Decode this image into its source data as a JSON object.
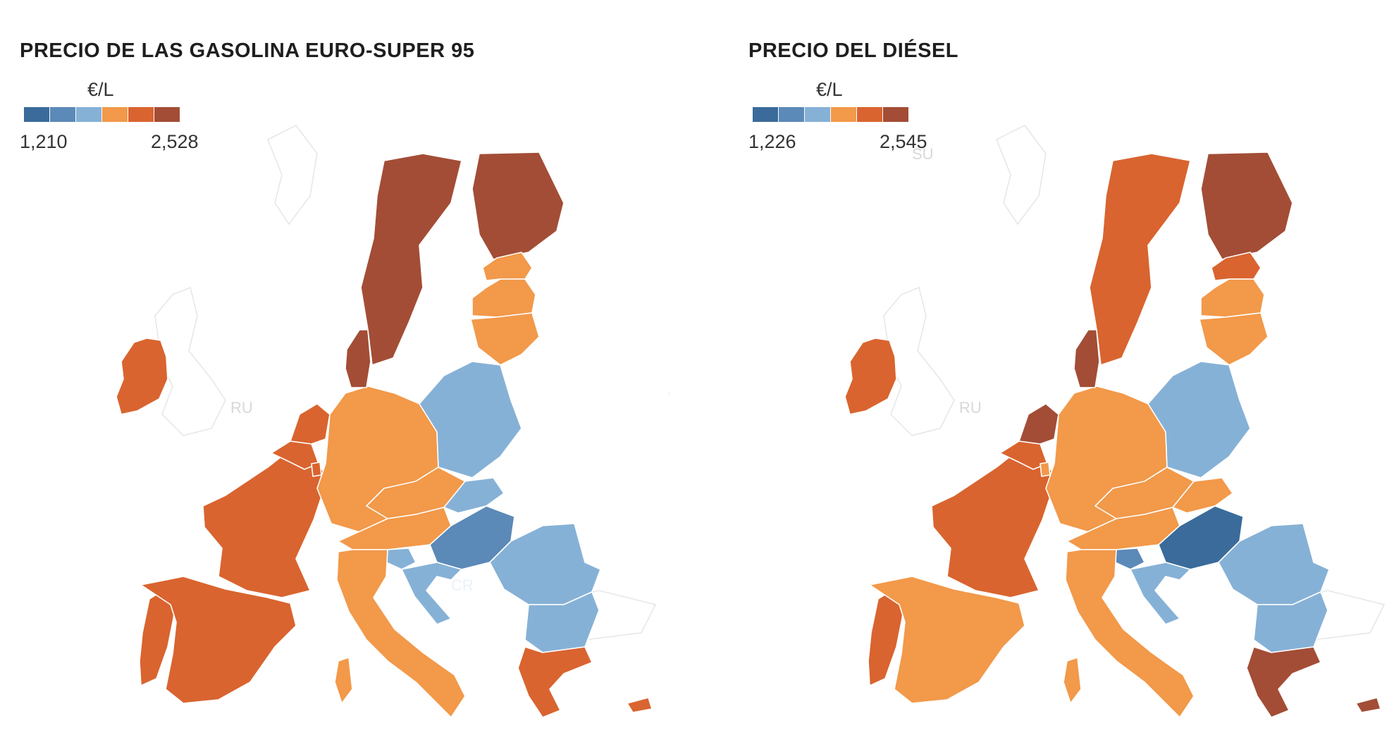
{
  "colors": {
    "scale": [
      "#3a6b9a",
      "#5b89b8",
      "#86b1d6",
      "#f2994a",
      "#d9642f",
      "#a34d36"
    ]
  },
  "panels": [
    {
      "title": "PRECIO DE LAS GASOLINA EURO-SUPER 95",
      "unit": "€/L",
      "min": "1,210",
      "max": "2,528",
      "map_labels": {
        "ru": "RU",
        "hr": "CR",
        "su": ""
      },
      "fills": {
        "ireland": 4,
        "portugal": 4,
        "spain": 4,
        "france": 4,
        "belgium": 4,
        "netherlands": 4,
        "luxembourg": 4,
        "denmark": 5,
        "sweden": 5,
        "finland": 5,
        "estonia": 3,
        "latvia": 3,
        "lithuania": 3,
        "germany": 3,
        "poland": 2,
        "czechia": 3,
        "slovakia": 2,
        "austria": 3,
        "hungary": 1,
        "slovenia": 2,
        "croatia": 2,
        "romania": 2,
        "bulgaria": 2,
        "italy": 3,
        "greece": 4,
        "cyprus": 4,
        "malta": 4
      }
    },
    {
      "title": "PRECIO DEL DIÉSEL",
      "unit": "€/L",
      "min": "1,226",
      "max": "2,545",
      "map_labels": {
        "ru": "RU",
        "hr": "",
        "su": "SU"
      },
      "fills": {
        "ireland": 4,
        "portugal": 4,
        "spain": 3,
        "france": 4,
        "belgium": 4,
        "netherlands": 5,
        "luxembourg": 3,
        "denmark": 5,
        "sweden": 4,
        "finland": 5,
        "estonia": 4,
        "latvia": 3,
        "lithuania": 3,
        "germany": 3,
        "poland": 2,
        "czechia": 3,
        "slovakia": 3,
        "austria": 3,
        "hungary": 0,
        "slovenia": 1,
        "croatia": 2,
        "romania": 2,
        "bulgaria": 2,
        "italy": 3,
        "greece": 5,
        "cyprus": 5,
        "malta": 4
      }
    }
  ]
}
